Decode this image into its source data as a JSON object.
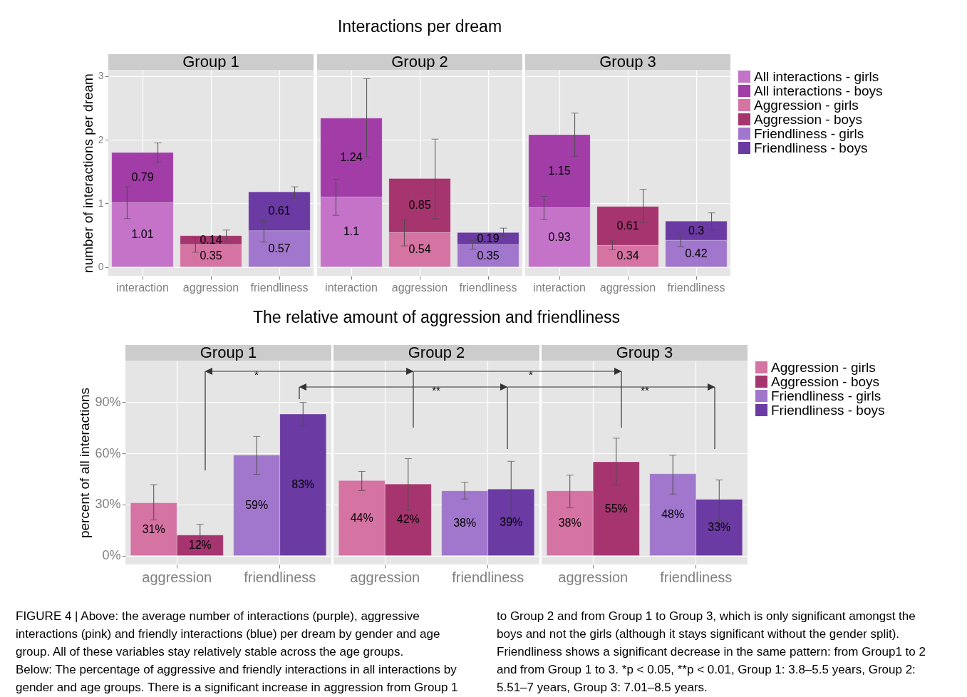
{
  "chart_data": [
    {
      "type": "bar",
      "subtitle": "Group 1",
      "ylabel": "number of interactions per dream",
      "categories": [
        "interaction",
        "aggression",
        "friendliness"
      ],
      "stacked": true,
      "data_labels": true,
      "grid": true,
      "ylim": [
        -0.14,
        3.1
      ],
      "yticks": [
        0,
        1,
        2,
        3
      ],
      "series": [
        {
          "color": "#c473c9",
          "values": [
            1.01,
            null,
            null
          ],
          "errors": [
            [
              0.76,
              1.26
            ],
            null,
            null
          ]
        },
        {
          "color": "#a23da8",
          "values": [
            0.79,
            null,
            null
          ],
          "errors": [
            [
              1.65,
              1.95
            ],
            null,
            null
          ]
        },
        {
          "color": "#d573a3",
          "values": [
            null,
            0.35,
            null
          ],
          "errors": [
            null,
            [
              0.23,
              0.46
            ],
            null
          ]
        },
        {
          "color": "#a6356f",
          "values": [
            null,
            0.14,
            null
          ],
          "errors": [
            null,
            [
              0.4,
              0.58
            ],
            null
          ]
        },
        {
          "color": "#a077cc",
          "values": [
            null,
            null,
            0.57
          ],
          "errors": [
            null,
            null,
            [
              0.39,
              0.73
            ]
          ]
        },
        {
          "color": "#6b3aa3",
          "values": [
            null,
            null,
            0.61
          ],
          "errors": [
            null,
            null,
            [
              1.08,
              1.26
            ]
          ]
        }
      ]
    },
    {
      "type": "bar",
      "title": "Interactions per dream",
      "subtitle": "Group 2",
      "categories": [
        "interaction",
        "aggression",
        "friendliness"
      ],
      "stacked": true,
      "data_labels": true,
      "grid": true,
      "tick_labels": "x",
      "ylim": [
        -0.14,
        3.1
      ],
      "yticks": [
        0,
        1,
        2,
        3
      ],
      "series": [
        {
          "color": "#c473c9",
          "values": [
            1.1,
            null,
            null
          ],
          "errors": [
            [
              0.81,
              1.38
            ],
            null,
            null
          ]
        },
        {
          "color": "#a23da8",
          "values": [
            1.24,
            null,
            null
          ],
          "errors": [
            [
              1.73,
              2.96
            ],
            null,
            null
          ]
        },
        {
          "color": "#d573a3",
          "values": [
            null,
            0.54,
            null
          ],
          "errors": [
            null,
            [
              0.33,
              0.74
            ],
            null
          ]
        },
        {
          "color": "#a6356f",
          "values": [
            null,
            0.85,
            null
          ],
          "errors": [
            null,
            [
              0.76,
              2.01
            ],
            null
          ]
        },
        {
          "color": "#a077cc",
          "values": [
            null,
            null,
            0.35
          ],
          "errors": [
            null,
            null,
            [
              0.28,
              0.42
            ]
          ]
        },
        {
          "color": "#6b3aa3",
          "values": [
            null,
            null,
            0.19
          ],
          "errors": [
            null,
            null,
            [
              0.48,
              0.61
            ]
          ]
        }
      ]
    },
    {
      "type": "bar",
      "subtitle": "Group 3",
      "categories": [
        "interaction",
        "aggression",
        "friendliness"
      ],
      "stacked": true,
      "data_labels": true,
      "grid": true,
      "tick_labels": "x",
      "legend": "right",
      "ylim": [
        -0.14,
        3.1
      ],
      "yticks": [
        0,
        1,
        2,
        3
      ],
      "series": [
        {
          "name": "All interactions - girls",
          "color": "#c473c9",
          "values": [
            0.93,
            null,
            null
          ],
          "errors": [
            [
              0.75,
              1.11
            ],
            null,
            null
          ]
        },
        {
          "name": "All interactions - boys",
          "color": "#a23da8",
          "values": [
            1.15,
            null,
            null
          ],
          "errors": [
            [
              1.74,
              2.42
            ],
            null,
            null
          ]
        },
        {
          "name": "Aggression - girls",
          "color": "#d573a3",
          "values": [
            null,
            0.34,
            null
          ],
          "errors": [
            null,
            [
              0.27,
              0.41
            ],
            null
          ]
        },
        {
          "name": "Aggression - boys",
          "color": "#a6356f",
          "values": [
            null,
            0.61,
            null
          ],
          "errors": [
            null,
            [
              0.7,
              1.22
            ],
            null
          ]
        },
        {
          "name": "Friendliness - girls",
          "color": "#a077cc",
          "values": [
            null,
            null,
            0.42
          ],
          "errors": [
            null,
            null,
            [
              0.32,
              0.52
            ]
          ]
        },
        {
          "name": "Friendliness - boys",
          "color": "#6b3aa3",
          "values": [
            null,
            null,
            0.3
          ],
          "errors": [
            null,
            null,
            [
              0.58,
              0.85
            ]
          ]
        }
      ]
    },
    {
      "type": "bar",
      "subtitle": "Group 1",
      "ylabel": "percent of all interactions",
      "categories": [
        "aggression",
        "friendliness"
      ],
      "grid": true,
      "ylim": [
        -5.2,
        114.4
      ],
      "yticks": [
        {
          "value": 0,
          "label": "0%"
        },
        {
          "value": 30,
          "label": "30%"
        },
        {
          "value": 60,
          "label": "60%"
        },
        {
          "value": 90,
          "label": "90%"
        }
      ],
      "annotations": [
        "*",
        "*",
        "**",
        "**"
      ],
      "series": [
        {
          "color": "#d573a3",
          "values": [
            31,
            null
          ],
          "value_labels": [
            "31%",
            null
          ],
          "errors": [
            [
              20.9,
              41.6
            ],
            null
          ]
        },
        {
          "color": "#a6356f",
          "values": [
            12,
            null
          ],
          "value_labels": [
            "12%",
            null
          ],
          "errors": [
            [
              5.6,
              18.3
            ],
            null
          ]
        },
        {
          "color": "#a077cc",
          "values": [
            null,
            59
          ],
          "value_labels": [
            null,
            "59%"
          ],
          "errors": [
            null,
            [
              47.7,
              69.9
            ]
          ]
        },
        {
          "color": "#6b3aa3",
          "values": [
            null,
            83
          ],
          "value_labels": [
            null,
            "83%"
          ],
          "errors": [
            null,
            [
              76,
              89.9
            ]
          ]
        }
      ]
    },
    {
      "type": "bar",
      "title": "The relative amount of aggression and friendliness",
      "subtitle": "Group 2",
      "categories": [
        "aggression",
        "friendliness"
      ],
      "grid": true,
      "tick_labels": "x",
      "ylim": [
        -5.2,
        114.4
      ],
      "yticks": [
        0,
        30,
        60,
        90
      ],
      "series": [
        {
          "color": "#d573a3",
          "values": [
            44,
            null
          ],
          "value_labels": [
            "44%",
            null
          ],
          "errors": [
            [
              38.1,
              49.4
            ],
            null
          ]
        },
        {
          "color": "#a6356f",
          "values": [
            42,
            null
          ],
          "value_labels": [
            "42%",
            null
          ],
          "errors": [
            [
              26.6,
              56.9
            ],
            null
          ]
        },
        {
          "color": "#a077cc",
          "values": [
            null,
            38
          ],
          "value_labels": [
            null,
            "38%"
          ],
          "errors": [
            null,
            [
              33.2,
              43.1
            ]
          ]
        },
        {
          "color": "#6b3aa3",
          "values": [
            null,
            39
          ],
          "value_labels": [
            null,
            "39%"
          ],
          "errors": [
            null,
            [
              21.6,
              55.3
            ]
          ]
        }
      ]
    },
    {
      "type": "bar",
      "subtitle": "Group 3",
      "categories": [
        "aggression",
        "friendliness"
      ],
      "grid": true,
      "tick_labels": "x",
      "legend": "right",
      "ylim": [
        -5.2,
        114.4
      ],
      "yticks": [
        0,
        30,
        60,
        90
      ],
      "annotations": [
        "FIGURE 4 | Above: the average number of interactions (purple), aggressive interactions (pink) and friendly interactions (blue) per dream by gender and age group. All of these variables stay relatively stable across the age groups.",
        "Below: The percentage of aggressive and friendly interactions in all interactions by gender and age groups. There is a significant increase in aggression from Group 1 to Group 2 and from Group 1 to Group 3, which is only significant amongst the boys and not the girls (although it stays significant without the gender split). Friendliness shows a significant decrease in the same pattern: from Group1 to 2 and from Group 1 to 3. *p < 0.05, **p < 0.01, Group 1: 3.8–5.5 years, Group 2: 5.51–7 years, Group 3: 7.01–8.5 years."
      ],
      "series": [
        {
          "name": "Aggression - girls",
          "color": "#d573a3",
          "values": [
            38,
            null
          ],
          "value_labels": [
            "38%",
            null
          ],
          "errors": [
            [
              28,
              47.2
            ],
            null
          ]
        },
        {
          "name": "Aggression - boys",
          "color": "#a6356f",
          "values": [
            55,
            null
          ],
          "value_labels": [
            "55%",
            null
          ],
          "errors": [
            [
              41.2,
              68.9
            ],
            null
          ]
        },
        {
          "name": "Friendliness - girls",
          "color": "#a077cc",
          "values": [
            null,
            48
          ],
          "value_labels": [
            null,
            "48%"
          ],
          "errors": [
            null,
            [
              36.1,
              58.9
            ]
          ]
        },
        {
          "name": "Friendliness - boys",
          "color": "#6b3aa3",
          "values": [
            null,
            33
          ],
          "value_labels": [
            null,
            "33%"
          ],
          "errors": [
            null,
            [
              20.5,
              44.4
            ]
          ]
        }
      ]
    }
  ]
}
